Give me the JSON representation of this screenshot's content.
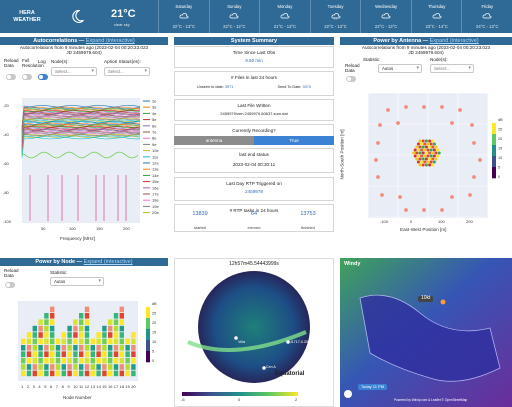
{
  "weather": {
    "location": "HERA WEATHER",
    "temperature": "21°C",
    "condition": "clear sky",
    "days": [
      {
        "name": "Saturday",
        "temp": "22°C - 13°C",
        "icon": "cloudy-icon"
      },
      {
        "name": "Sunday",
        "temp": "22°C - 12°C",
        "icon": "partly-cloudy-icon"
      },
      {
        "name": "Monday",
        "temp": "21°C - 13°C",
        "icon": "cloudy-icon"
      },
      {
        "name": "Tuesday",
        "temp": "22°C - 13°C",
        "icon": "rain-icon"
      },
      {
        "name": "Wednesday",
        "temp": "22°C - 13°C",
        "icon": "cloudy-icon"
      },
      {
        "name": "Thursday",
        "temp": "23°C - 14°C",
        "icon": "partly-cloudy-icon"
      },
      {
        "name": "Friday",
        "temp": "24°C - 13°C",
        "icon": "cloudy-icon"
      }
    ],
    "colors": {
      "bar": "#2f6a96",
      "text": "#ffffff"
    }
  },
  "autocorrelations": {
    "title": "Autocorrelations — ",
    "link": "Expand (interactive)",
    "subtitle_1": "Autocorrelations from 9 minutes ago (2023-02-04 00:20:23.023",
    "subtitle_2": "JD 2459979.604)",
    "reload_label": "Reload Data",
    "full_label": "Full Resolution",
    "log_label": "Log",
    "nodes_label": "Node(s):",
    "nodes_placeholder": "Select...",
    "apriori_label": "Apriori Status(es):",
    "apriori_placeholder": "Select...",
    "xlabel": "Frequency [MHz]",
    "x_ticks": [
      "50",
      "100",
      "150",
      "200"
    ],
    "y_ticks": [
      "-20",
      "-40",
      "-60",
      "-80",
      "-100"
    ],
    "legend": [
      "2e",
      "3e",
      "4e",
      "5e",
      "6e",
      "7e",
      "8e",
      "9e",
      "10e",
      "11e",
      "12e",
      "13e",
      "14e",
      "15e",
      "16e",
      "17e",
      "18e",
      "19e",
      "20e"
    ]
  },
  "system_summary": {
    "title": "System Summary",
    "time_since_title": "Time Since Last Obs",
    "time_since_value": "9.60 min",
    "files_title": "# Files in last 24 hours",
    "files_unseen_label": "Unseen to date: ",
    "files_unseen_value": "3971",
    "files_seen_label": "Seed To Date: ",
    "files_seen_value": "3970",
    "last_file_title": "Last File Written",
    "last_file_value": "2459979/zen.2459979.60637.sum.dat",
    "recording_title": "Currently Recording?",
    "antenna_btn": "antenna",
    "true_btn": "True",
    "status_title": "last end status",
    "status_value": "2023-02-04 00:30:11",
    "rtp_title": "Last Day RTP Triggered on",
    "rtp_value": "2459978",
    "rtp_tasks_title": "# RTP tasks in 24 hours",
    "rtp_started": "13839",
    "rtp_errored": "64",
    "rtp_finished": "13753",
    "started_label": "started",
    "errored_label": "errored",
    "finished_label": "finished"
  },
  "power_antenna": {
    "title": "Power by Antenna — ",
    "link": "Expand (interactive)",
    "subtitle_1": "Autocorrelations from 9 minutes ago (2023-02-04 00:20:23.023",
    "subtitle_2": "JD 2459979.604)",
    "reload_label": "Reload Data",
    "statistic_label": "Statistic:",
    "statistic_value": "Autos",
    "node_label": "Node(s):",
    "node_placeholder": "Select...",
    "xlabel": "East-West Position [m]",
    "ylabel": "North-South Position [m]",
    "x_ticks": [
      "-100",
      "0",
      "100",
      "200"
    ],
    "y_ticks": [
      "200",
      "100",
      "0",
      "-100",
      "-200"
    ],
    "cbar_ticks": [
      "dB",
      "25",
      "20",
      "15",
      "10",
      "5",
      "0"
    ]
  },
  "power_node": {
    "title": "Power by Node — ",
    "link": "Expand (interactive)",
    "reload_label": "Reload Data",
    "statistic_label": "Statistic:",
    "statistic_value": "Autos",
    "xlabel": "Node Number",
    "x_ticks": [
      "1",
      "2",
      "3",
      "4",
      "5",
      "6",
      "7",
      "8",
      "9",
      "10",
      "11",
      "12",
      "13",
      "14",
      "15",
      "16",
      "17",
      "18",
      "19",
      "20"
    ],
    "cbar_ticks": [
      "dB",
      "25",
      "20",
      "15",
      "10",
      "5",
      "0"
    ]
  },
  "sky_map": {
    "caption": "12h57m45.54443999s",
    "labels": [
      "Equatorial",
      "J1717-0.258454",
      "Vela",
      "Cen A"
    ],
    "cbar_ticks": [
      "-6",
      "0",
      "2"
    ]
  },
  "wind_map": {
    "brand": "Windy",
    "value": "10kt",
    "footer": "Powered by Windy.com & Leaflet © OpenStreetMap",
    "time_btn": "Today 11 PM"
  }
}
